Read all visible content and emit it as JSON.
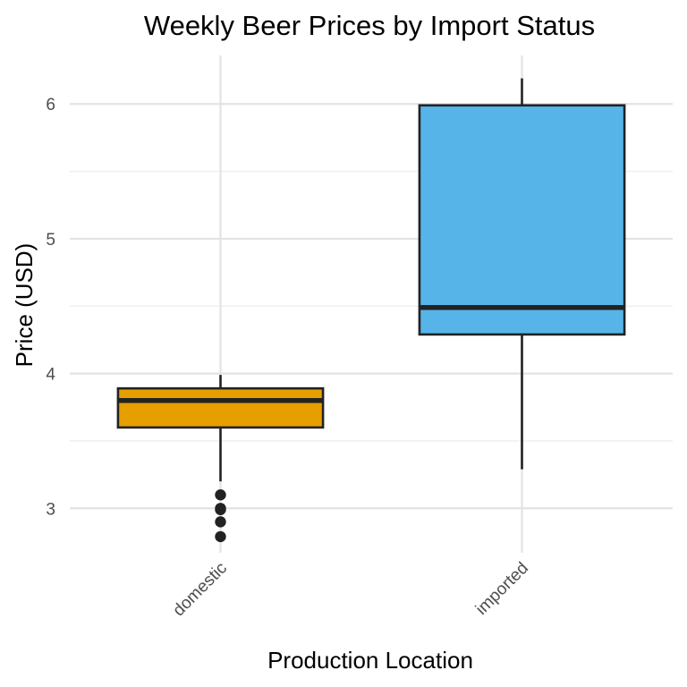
{
  "chart_data": {
    "type": "boxplot",
    "title": "Weekly Beer Prices by Import Status",
    "xlabel": "Production Location",
    "ylabel": "Price (USD)",
    "categories": [
      "domestic",
      "imported"
    ],
    "ylim": [
      2.67,
      6.36
    ],
    "yticks": [
      3,
      4,
      5,
      6
    ],
    "grid": true,
    "legend": "none",
    "boxes": [
      {
        "category": "domestic",
        "whisker_low": 3.2,
        "q1": 3.6,
        "median": 3.8,
        "q3": 3.89,
        "whisker_high": 3.99,
        "outliers": [
          3.1,
          3.0,
          2.99,
          2.9,
          2.79
        ],
        "color": "#E69F00"
      },
      {
        "category": "imported",
        "whisker_low": 3.29,
        "q1": 4.29,
        "median": 4.49,
        "q3": 5.99,
        "whisker_high": 6.19,
        "outliers": [],
        "color": "#56B4E9"
      }
    ]
  }
}
